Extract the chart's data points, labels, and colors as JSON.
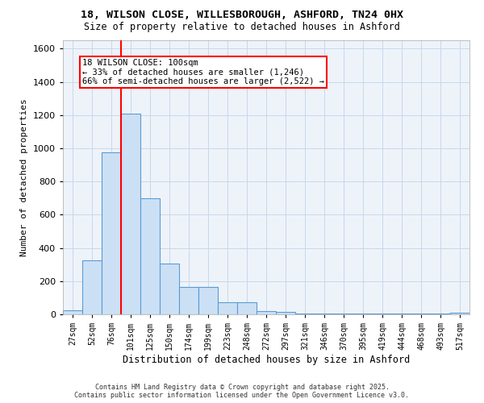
{
  "title1": "18, WILSON CLOSE, WILLESBOROUGH, ASHFORD, TN24 0HX",
  "title2": "Size of property relative to detached houses in Ashford",
  "xlabel": "Distribution of detached houses by size in Ashford",
  "ylabel": "Number of detached properties",
  "categories": [
    "27sqm",
    "52sqm",
    "76sqm",
    "101sqm",
    "125sqm",
    "150sqm",
    "174sqm",
    "199sqm",
    "223sqm",
    "248sqm",
    "272sqm",
    "297sqm",
    "321sqm",
    "346sqm",
    "370sqm",
    "395sqm",
    "419sqm",
    "444sqm",
    "468sqm",
    "493sqm",
    "517sqm"
  ],
  "bar_values": [
    25,
    325,
    975,
    1210,
    700,
    305,
    165,
    165,
    75,
    75,
    20,
    15,
    5,
    5,
    5,
    5,
    5,
    5,
    5,
    5,
    10
  ],
  "bar_color": "#cce0f5",
  "bar_edge_color": "#5b9bd5",
  "bar_edge_width": 0.8,
  "ylim": [
    0,
    1650
  ],
  "yticks": [
    0,
    200,
    400,
    600,
    800,
    1000,
    1200,
    1400,
    1600
  ],
  "red_line_x": 3.0,
  "annotation_text": "18 WILSON CLOSE: 100sqm\n← 33% of detached houses are smaller (1,246)\n66% of semi-detached houses are larger (2,522) →",
  "annotation_box_color": "white",
  "annotation_box_edge_color": "red",
  "footer1": "Contains HM Land Registry data © Crown copyright and database right 2025.",
  "footer2": "Contains public sector information licensed under the Open Government Licence v3.0.",
  "grid_color": "#c8d8e8",
  "background_color": "#eef3fa",
  "title1_fontsize": 9.5,
  "title2_fontsize": 8.5,
  "ylabel_fontsize": 8,
  "xlabel_fontsize": 8.5,
  "tick_fontsize": 7,
  "annotation_fontsize": 7.5,
  "footer_fontsize": 6
}
